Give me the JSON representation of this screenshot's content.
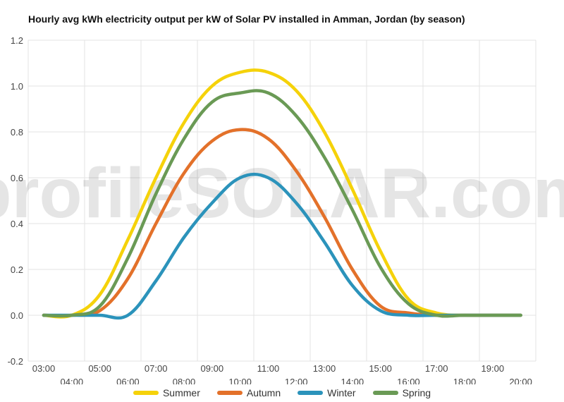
{
  "watermark": "profileSOLAR.com",
  "chart_data": {
    "type": "line",
    "title": "Hourly avg kWh electricity output per kW of Solar PV installed in Amman, Jordan (by season)",
    "xlabel": "",
    "ylabel": "",
    "ylim": [
      -0.2,
      1.2
    ],
    "yticks": [
      "-0.2",
      "0.0",
      "0.2",
      "0.4",
      "0.6",
      "0.8",
      "1.0",
      "1.2"
    ],
    "categories": [
      "03:00",
      "04:00",
      "05:00",
      "06:00",
      "07:00",
      "08:00",
      "09:00",
      "10:00",
      "11:00",
      "12:00",
      "13:00",
      "14:00",
      "15:00",
      "16:00",
      "17:00",
      "18:00",
      "19:00",
      "20:00"
    ],
    "grid": true,
    "legend_position": "bottom",
    "series": [
      {
        "name": "Summer",
        "color": "#f5d20a",
        "values": [
          0,
          0,
          0.09,
          0.33,
          0.6,
          0.84,
          1.0,
          1.06,
          1.06,
          0.98,
          0.8,
          0.55,
          0.28,
          0.07,
          0.01,
          0,
          0,
          0
        ]
      },
      {
        "name": "Autumn",
        "color": "#e3712a",
        "values": [
          0,
          0,
          0.02,
          0.16,
          0.4,
          0.62,
          0.76,
          0.81,
          0.77,
          0.63,
          0.43,
          0.2,
          0.04,
          0.01,
          0,
          0,
          0,
          0
        ]
      },
      {
        "name": "Winter",
        "color": "#2b93bb",
        "values": [
          0,
          0,
          0,
          0,
          0.15,
          0.34,
          0.49,
          0.6,
          0.6,
          0.49,
          0.32,
          0.13,
          0.02,
          0,
          0,
          0,
          0,
          0
        ]
      },
      {
        "name": "Spring",
        "color": "#6a9a55",
        "values": [
          0,
          0,
          0.04,
          0.25,
          0.53,
          0.77,
          0.93,
          0.97,
          0.97,
          0.87,
          0.69,
          0.46,
          0.21,
          0.05,
          0,
          0,
          0,
          0
        ]
      }
    ]
  }
}
